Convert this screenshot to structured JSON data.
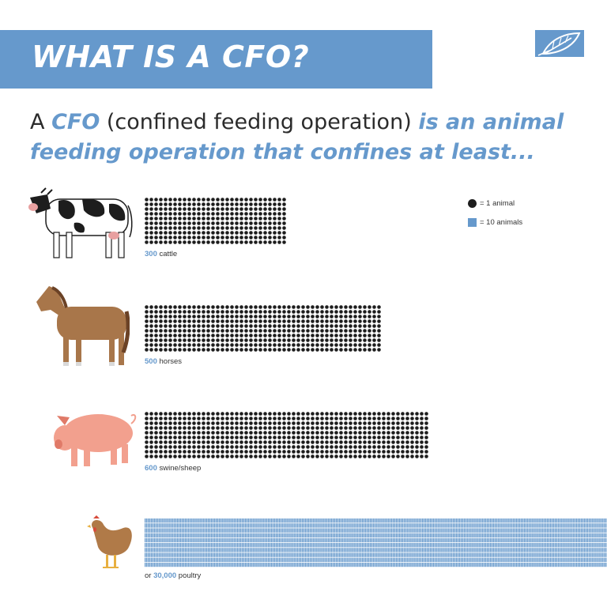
{
  "header": {
    "title": "WHAT IS A CFO?"
  },
  "intro": {
    "lead": "A",
    "acronym": "CFO",
    "definition": "(confined feeding operation)",
    "emphasis": "is an animal feeding operation that confines at least..."
  },
  "legend": {
    "dot_label": "= 1 animal",
    "square_label": "= 10 animals"
  },
  "rows": [
    {
      "prefix": "",
      "count": "300",
      "unit": "cattle",
      "dots": 300,
      "marker": "dot",
      "animal": "cow-illustration"
    },
    {
      "prefix": "",
      "count": "500",
      "unit": "horses",
      "dots": 500,
      "marker": "dot",
      "animal": "horse-illustration"
    },
    {
      "prefix": "",
      "count": "600",
      "unit": "swine/sheep",
      "dots": 600,
      "marker": "dot",
      "animal": "pig-illustration"
    },
    {
      "prefix": "or",
      "count": "30,000",
      "unit": "poultry",
      "dots": 3000,
      "marker": "square",
      "animal": "chicken-illustration"
    }
  ],
  "colors": {
    "accent": "#6699cc",
    "dot": "#1d1d1d",
    "text": "#2b2b2b"
  }
}
